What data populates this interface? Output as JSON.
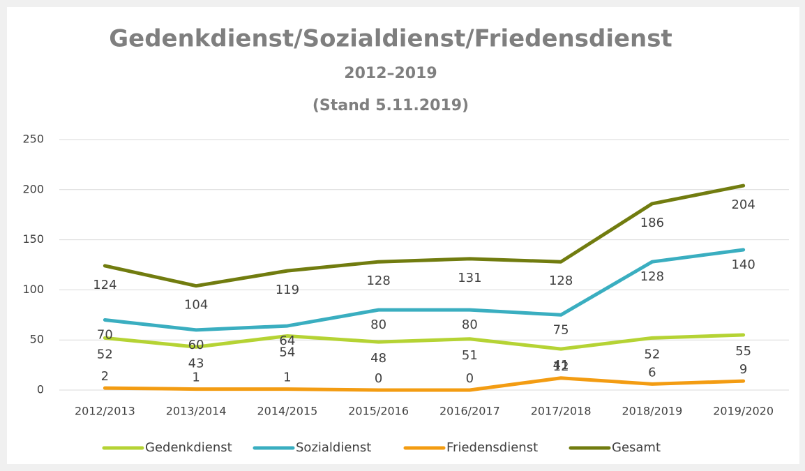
{
  "chart_data": {
    "type": "line",
    "title": "Gedenkdienst/Sozialdienst/Friedensdienst",
    "subtitle": "2012–2019",
    "annotation": "(Stand 5.11.2019)",
    "categories": [
      "2012/2013",
      "2013/2014",
      "2014/2015",
      "2015/2016",
      "2016/2017",
      "2017/2018",
      "2018/2019",
      "2019/2020"
    ],
    "series": [
      {
        "name": "Gedenkdienst",
        "color": "#b5d334",
        "values": [
          52,
          43,
          54,
          48,
          51,
          41,
          52,
          55
        ]
      },
      {
        "name": "Sozialdienst",
        "color": "#3aaec0",
        "values": [
          70,
          60,
          64,
          80,
          80,
          75,
          128,
          140
        ]
      },
      {
        "name": "Friedensdienst",
        "color": "#f39c12",
        "values": [
          2,
          1,
          1,
          0,
          0,
          12,
          6,
          9
        ]
      },
      {
        "name": "Gesamt",
        "color": "#717c0f",
        "values": [
          124,
          104,
          119,
          128,
          131,
          128,
          186,
          204
        ]
      }
    ],
    "ylim": [
      0,
      250
    ],
    "yticks": [
      0,
      50,
      100,
      150,
      200,
      250
    ],
    "grid": true,
    "legend": "bottom"
  }
}
